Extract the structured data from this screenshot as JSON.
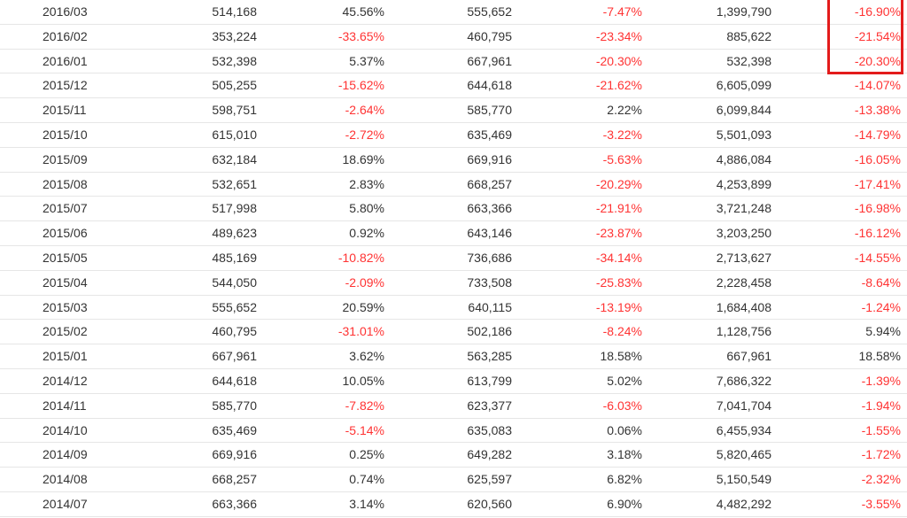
{
  "colors": {
    "text": "#333333",
    "negative": "#ff3333",
    "highlight_border": "#e31b1b",
    "row_divider": "#e6e6e6"
  },
  "table": {
    "rows": [
      {
        "period": "2016/03",
        "c1": "514,168",
        "c2": "45.56%",
        "c3": "555,652",
        "c4": "-7.47%",
        "c5": "1,399,790",
        "c6": "-16.90%"
      },
      {
        "period": "2016/02",
        "c1": "353,224",
        "c2": "-33.65%",
        "c3": "460,795",
        "c4": "-23.34%",
        "c5": "885,622",
        "c6": "-21.54%"
      },
      {
        "period": "2016/01",
        "c1": "532,398",
        "c2": "5.37%",
        "c3": "667,961",
        "c4": "-20.30%",
        "c5": "532,398",
        "c6": "-20.30%"
      },
      {
        "period": "2015/12",
        "c1": "505,255",
        "c2": "-15.62%",
        "c3": "644,618",
        "c4": "-21.62%",
        "c5": "6,605,099",
        "c6": "-14.07%"
      },
      {
        "period": "2015/11",
        "c1": "598,751",
        "c2": "-2.64%",
        "c3": "585,770",
        "c4": "2.22%",
        "c5": "6,099,844",
        "c6": "-13.38%"
      },
      {
        "period": "2015/10",
        "c1": "615,010",
        "c2": "-2.72%",
        "c3": "635,469",
        "c4": "-3.22%",
        "c5": "5,501,093",
        "c6": "-14.79%"
      },
      {
        "period": "2015/09",
        "c1": "632,184",
        "c2": "18.69%",
        "c3": "669,916",
        "c4": "-5.63%",
        "c5": "4,886,084",
        "c6": "-16.05%"
      },
      {
        "period": "2015/08",
        "c1": "532,651",
        "c2": "2.83%",
        "c3": "668,257",
        "c4": "-20.29%",
        "c5": "4,253,899",
        "c6": "-17.41%"
      },
      {
        "period": "2015/07",
        "c1": "517,998",
        "c2": "5.80%",
        "c3": "663,366",
        "c4": "-21.91%",
        "c5": "3,721,248",
        "c6": "-16.98%"
      },
      {
        "period": "2015/06",
        "c1": "489,623",
        "c2": "0.92%",
        "c3": "643,146",
        "c4": "-23.87%",
        "c5": "3,203,250",
        "c6": "-16.12%"
      },
      {
        "period": "2015/05",
        "c1": "485,169",
        "c2": "-10.82%",
        "c3": "736,686",
        "c4": "-34.14%",
        "c5": "2,713,627",
        "c6": "-14.55%"
      },
      {
        "period": "2015/04",
        "c1": "544,050",
        "c2": "-2.09%",
        "c3": "733,508",
        "c4": "-25.83%",
        "c5": "2,228,458",
        "c6": "-8.64%"
      },
      {
        "period": "2015/03",
        "c1": "555,652",
        "c2": "20.59%",
        "c3": "640,115",
        "c4": "-13.19%",
        "c5": "1,684,408",
        "c6": "-1.24%"
      },
      {
        "period": "2015/02",
        "c1": "460,795",
        "c2": "-31.01%",
        "c3": "502,186",
        "c4": "-8.24%",
        "c5": "1,128,756",
        "c6": "5.94%"
      },
      {
        "period": "2015/01",
        "c1": "667,961",
        "c2": "3.62%",
        "c3": "563,285",
        "c4": "18.58%",
        "c5": "667,961",
        "c6": "18.58%"
      },
      {
        "period": "2014/12",
        "c1": "644,618",
        "c2": "10.05%",
        "c3": "613,799",
        "c4": "5.02%",
        "c5": "7,686,322",
        "c6": "-1.39%"
      },
      {
        "period": "2014/11",
        "c1": "585,770",
        "c2": "-7.82%",
        "c3": "623,377",
        "c4": "-6.03%",
        "c5": "7,041,704",
        "c6": "-1.94%"
      },
      {
        "period": "2014/10",
        "c1": "635,469",
        "c2": "-5.14%",
        "c3": "635,083",
        "c4": "0.06%",
        "c5": "6,455,934",
        "c6": "-1.55%"
      },
      {
        "period": "2014/09",
        "c1": "669,916",
        "c2": "0.25%",
        "c3": "649,282",
        "c4": "3.18%",
        "c5": "5,820,465",
        "c6": "-1.72%"
      },
      {
        "period": "2014/08",
        "c1": "668,257",
        "c2": "0.74%",
        "c3": "625,597",
        "c4": "6.82%",
        "c5": "5,150,549",
        "c6": "-2.32%"
      },
      {
        "period": "2014/07",
        "c1": "663,366",
        "c2": "3.14%",
        "c3": "620,560",
        "c4": "6.90%",
        "c5": "4,482,292",
        "c6": "-3.55%"
      }
    ]
  }
}
